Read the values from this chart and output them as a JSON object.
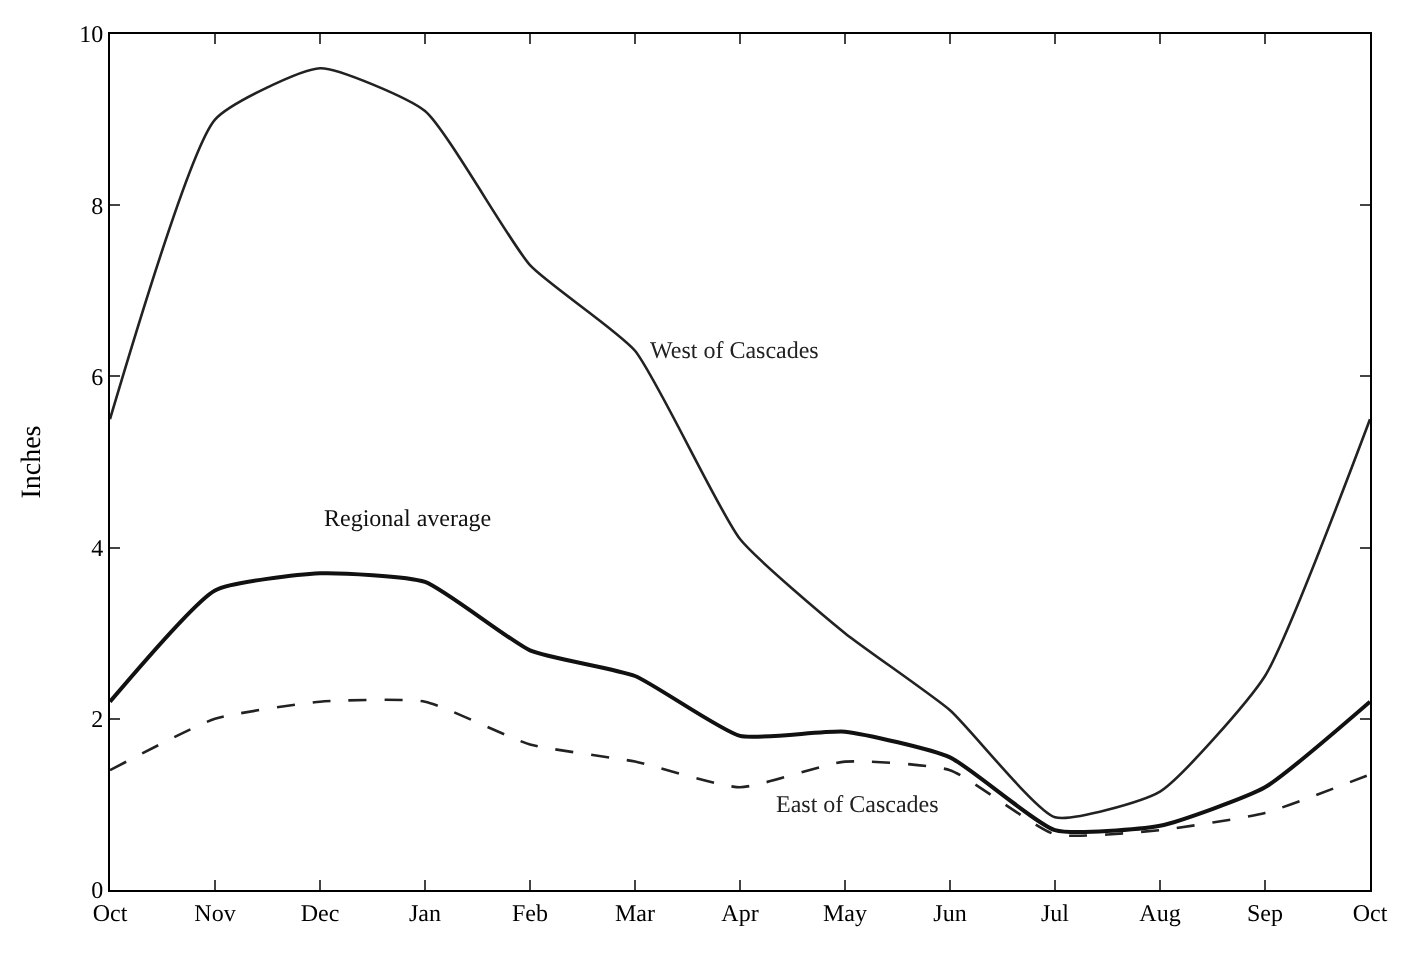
{
  "chart_data": {
    "type": "line",
    "ylabel": "Inches",
    "categories": [
      "Oct",
      "Nov",
      "Dec",
      "Jan",
      "Feb",
      "Mar",
      "Apr",
      "May",
      "Jun",
      "Jul",
      "Aug",
      "Sep",
      "Oct"
    ],
    "ylim": [
      0,
      10
    ],
    "yticks": [
      0,
      2,
      4,
      6,
      8,
      10
    ],
    "legend": false,
    "marker": "none",
    "series": [
      {
        "name": "West of Cascades",
        "color": "#222222",
        "line_style": "solid",
        "values": [
          5.5,
          9.0,
          9.6,
          9.1,
          7.3,
          6.3,
          4.1,
          3.0,
          2.1,
          0.85,
          1.15,
          2.5,
          5.5
        ]
      },
      {
        "name": "Regional average",
        "color": "#111111",
        "line_style": "solid",
        "values": [
          2.2,
          3.5,
          3.7,
          3.6,
          2.8,
          2.5,
          1.8,
          1.85,
          1.55,
          0.7,
          0.75,
          1.2,
          2.2
        ]
      },
      {
        "name": "East of Cascades",
        "color": "#222222",
        "line_style": "dashed",
        "values": [
          1.4,
          2.0,
          2.2,
          2.2,
          1.7,
          1.5,
          1.2,
          1.5,
          1.4,
          0.65,
          0.7,
          0.9,
          1.35
        ]
      }
    ]
  }
}
